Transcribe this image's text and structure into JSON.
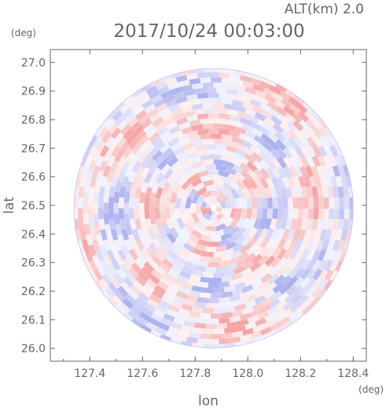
{
  "chart_data": {
    "type": "heatmap",
    "subtitle": "ALT(km) 2.0",
    "title": "2017/10/24 00:03:00",
    "xlabel": "lon",
    "ylabel": "lat",
    "x_unit": "(deg)",
    "y_unit": "(deg)",
    "xlim": [
      127.25,
      128.45
    ],
    "ylim": [
      25.955,
      27.045
    ],
    "x_ticks": [
      "127.4",
      "127.6",
      "127.8",
      "128.0",
      "128.2",
      "128.4"
    ],
    "y_ticks": [
      "26.0",
      "26.1",
      "26.2",
      "26.3",
      "26.4",
      "26.5",
      "26.6",
      "26.7",
      "26.8",
      "26.9",
      "27.0"
    ],
    "radar_center": {
      "lon": 127.87,
      "lat": 26.49
    },
    "coverage_radius_deg": 0.53,
    "grid": false,
    "colors": {
      "positive": "#f4a6a6",
      "negative": "#aeb2ee",
      "neutral": "#ffffff",
      "axis": "#666666"
    }
  }
}
